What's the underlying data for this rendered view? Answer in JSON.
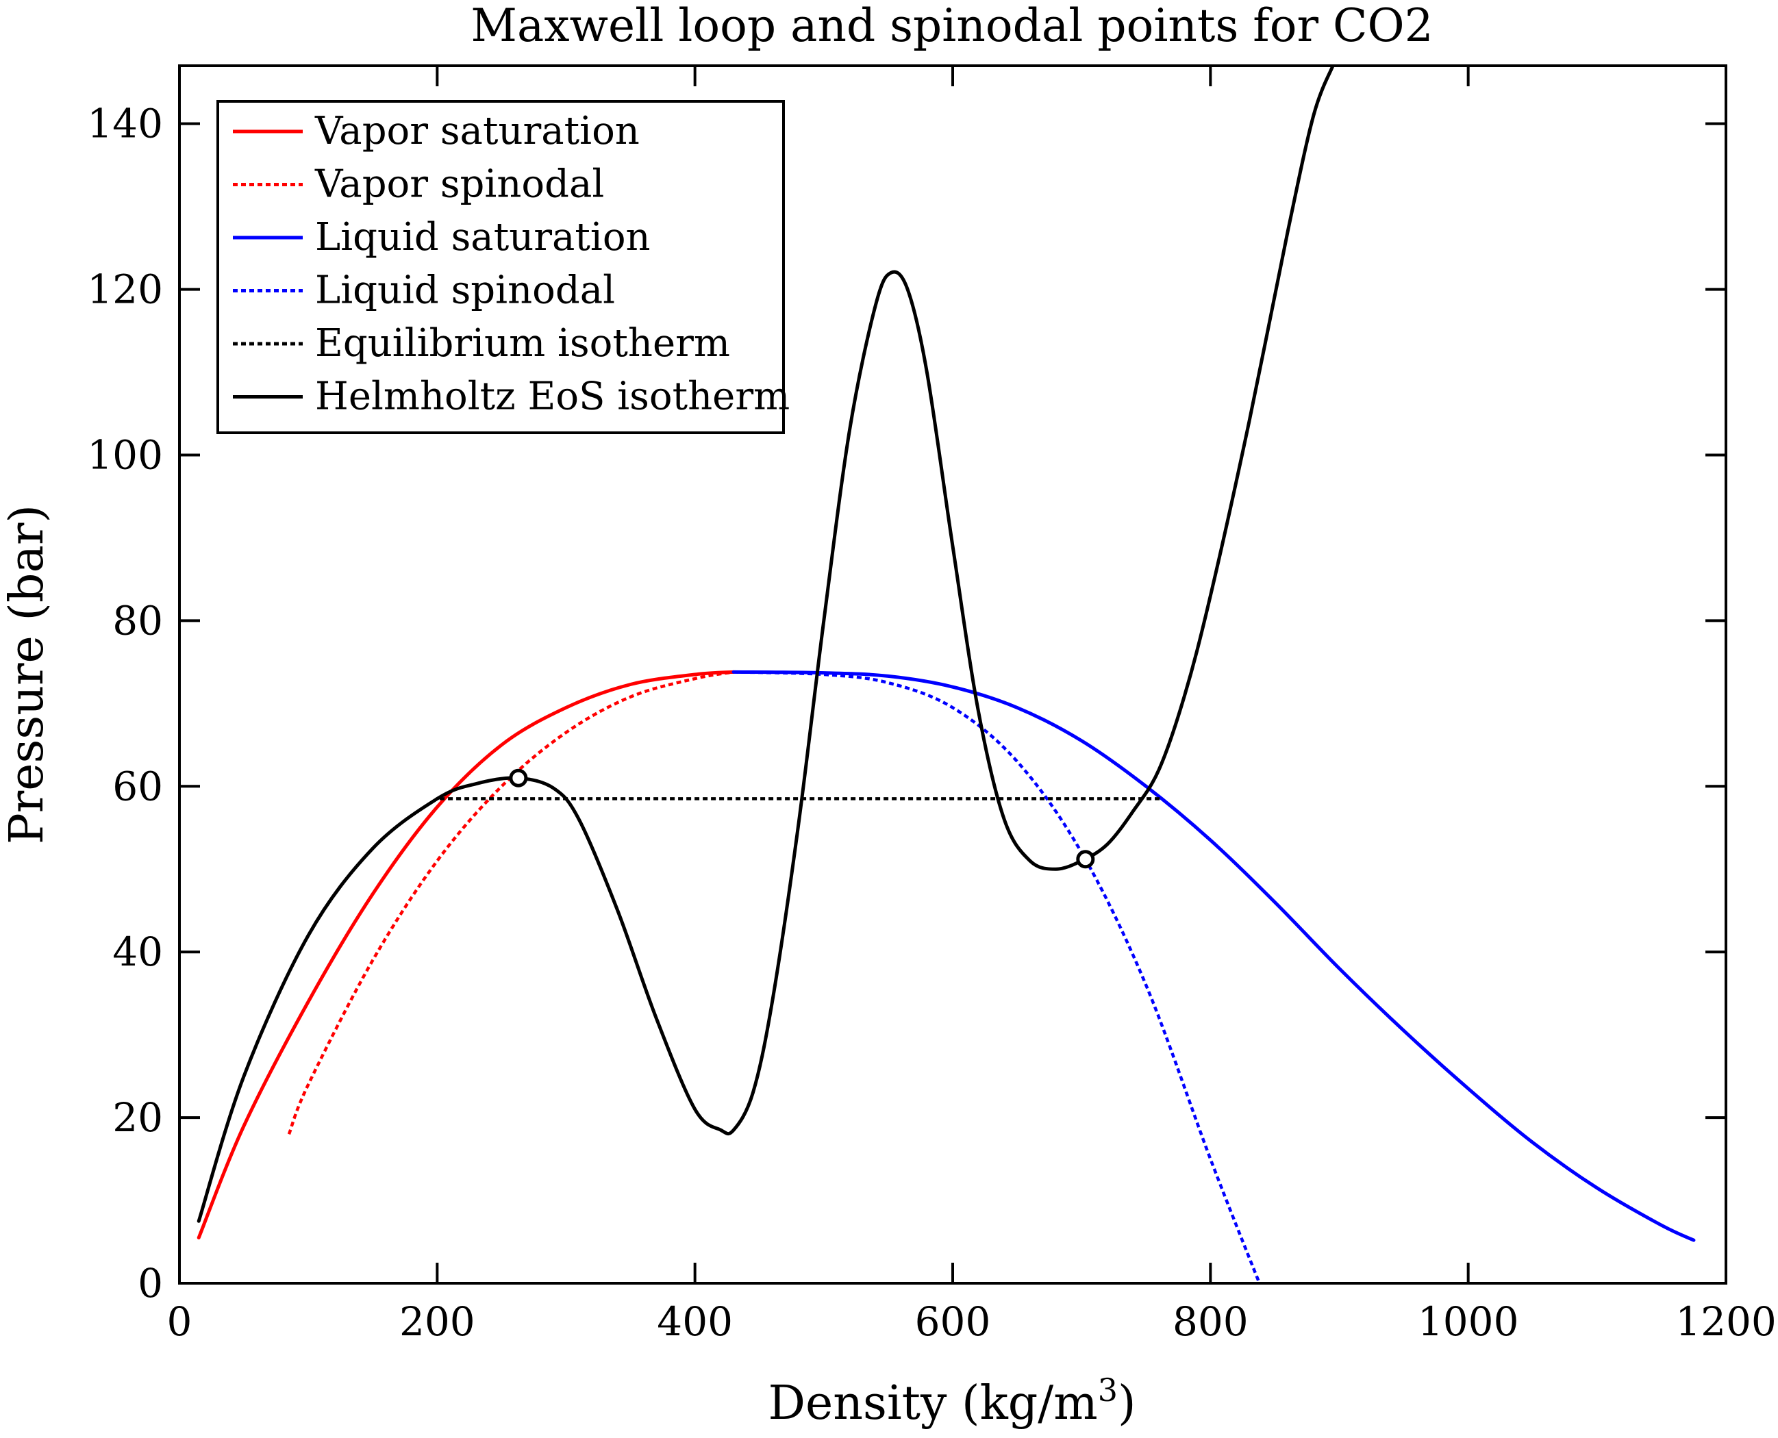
{
  "chart_data": {
    "type": "line",
    "title": "Maxwell loop and spinodal points for CO2",
    "xlabel_base": "Density (kg/m",
    "xlabel_sup": "3",
    "xlabel_close": ")",
    "ylabel": "Pressure (bar)",
    "xlim": [
      0,
      1200
    ],
    "ylim": [
      0,
      147
    ],
    "xticks": [
      0,
      200,
      400,
      600,
      800,
      1000,
      1200
    ],
    "yticks": [
      0,
      20,
      40,
      60,
      80,
      100,
      120,
      140
    ],
    "grid": false,
    "legend_position": "top-left",
    "series": [
      {
        "name": "Vapor saturation",
        "color": "#ff0000",
        "dash": "solid",
        "x": [
          15,
          50,
          100,
          150,
          200,
          250,
          300,
          350,
          400,
          430
        ],
        "y": [
          5.5,
          19,
          34,
          47,
          57.5,
          65,
          69.5,
          72.3,
          73.5,
          73.8
        ]
      },
      {
        "name": "Vapor spinodal",
        "color": "#ff0000",
        "dash": "dotted",
        "x": [
          85,
          100,
          150,
          200,
          250,
          300,
          350,
          400,
          430
        ],
        "y": [
          18,
          24,
          39,
          51,
          60,
          66.5,
          70.8,
          73,
          73.8
        ]
      },
      {
        "name": "Liquid saturation",
        "color": "#0000ff",
        "dash": "solid",
        "x": [
          430,
          500,
          550,
          600,
          650,
          700,
          750,
          800,
          850,
          900,
          950,
          1000,
          1050,
          1100,
          1150,
          1175
        ],
        "y": [
          73.8,
          73.7,
          73.3,
          72,
          69.5,
          65.5,
          60,
          53.5,
          46,
          38,
          30.5,
          23.5,
          17,
          11.5,
          7,
          5.2
        ]
      },
      {
        "name": "Liquid spinodal",
        "color": "#0000ff",
        "dash": "dotted",
        "x": [
          430,
          500,
          550,
          600,
          650,
          700,
          750,
          800,
          838
        ],
        "y": [
          73.8,
          73.5,
          72.5,
          69.5,
          63,
          52,
          36,
          15,
          0
        ]
      },
      {
        "name": "Equilibrium isotherm",
        "color": "#000000",
        "dash": "dotted",
        "x": [
          202,
          762
        ],
        "y": [
          58.5,
          58.5
        ]
      },
      {
        "name": "Helmholtz EoS isotherm",
        "color": "#000000",
        "dash": "solid",
        "x": [
          15,
          50,
          100,
          150,
          200,
          230,
          262,
          290,
          310,
          340,
          370,
          400,
          420,
          430,
          445,
          460,
          480,
          500,
          520,
          540,
          552,
          565,
          580,
          600,
          620,
          640,
          660,
          680,
          700,
          720,
          740,
          760,
          780,
          800,
          830,
          860,
          880,
          895
        ],
        "y": [
          7.5,
          25,
          42,
          52.5,
          58.5,
          60.3,
          61,
          59.8,
          56,
          45,
          32,
          21,
          18.5,
          18.5,
          23,
          34,
          55,
          80,
          103,
          118,
          122,
          120,
          110,
          89,
          69,
          56,
          51,
          50,
          51,
          53,
          57,
          62,
          71,
          83,
          104,
          127,
          141,
          147
        ]
      }
    ],
    "points": [
      {
        "name": "Spinodal point (vapor)",
        "x": 263,
        "y": 61
      },
      {
        "name": "Spinodal point (liquid)",
        "x": 703,
        "y": 51.2
      }
    ]
  }
}
